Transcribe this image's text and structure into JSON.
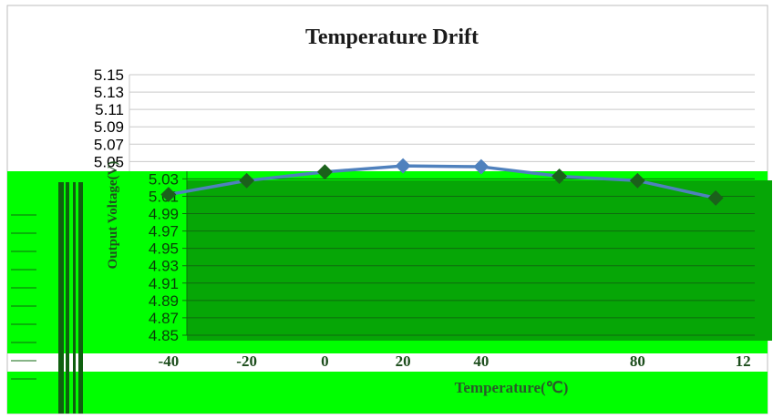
{
  "chart_data": {
    "type": "line",
    "title": "Temperature Drift",
    "xlabel": "Temperature(℃)",
    "ylabel": "Output Voltage(V)",
    "x_tick_labels": [
      "-40",
      "-20",
      "0",
      "20",
      "40",
      "80",
      "12"
    ],
    "y_tick_labels": [
      "5.15",
      "5.13",
      "5.11",
      "5.09",
      "5.07",
      "5.05",
      "5.03",
      "5.01",
      "4.99",
      "4.97",
      "4.95",
      "4.93",
      "4.91",
      "4.89",
      "4.87",
      "4.85"
    ],
    "xlim": [
      -50,
      110
    ],
    "ylim": [
      4.85,
      5.15
    ],
    "grid": true,
    "legend": "none",
    "series": [
      {
        "x": [
          -40,
          -20,
          0,
          20,
          40,
          60,
          80,
          100
        ],
        "y": [
          5.012,
          5.028,
          5.038,
          5.045,
          5.044,
          5.033,
          5.028,
          5.008
        ]
      }
    ],
    "colors": {
      "line": "#4f81bd",
      "line_overlay": "#1b611b",
      "overlay_bright": "#00ff00",
      "overlay_dark": "#06a606"
    }
  }
}
